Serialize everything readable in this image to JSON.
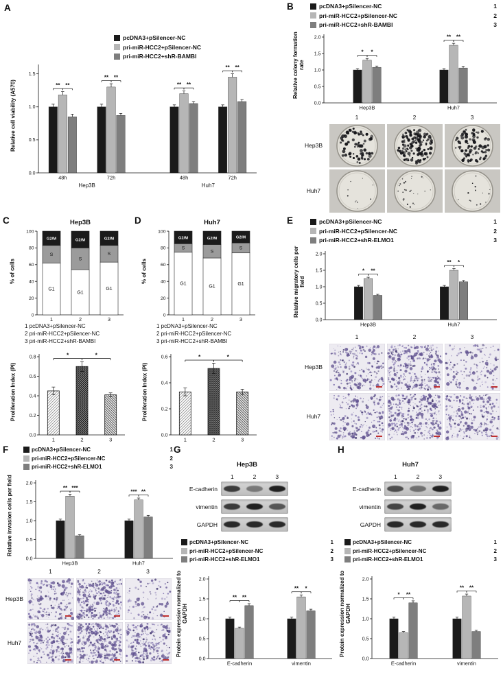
{
  "colors": {
    "series": [
      "#1a1a1a",
      "#b6b6b6",
      "#7e7e7e"
    ],
    "stack": {
      "g1": "#ffffff",
      "s": "#9b9b9b",
      "g2m": "#1b1b1b"
    },
    "colony_dot": "#16161a",
    "transwell_dots": [
      "#7b6cab",
      "#5d4f8e",
      "#9488bb",
      "#473c72"
    ],
    "scale_bar": "#c03030"
  },
  "panelA": {
    "letter": "A",
    "legend": {
      "items": [
        {
          "label": "pcDNA3+pSilencer-NC"
        },
        {
          "label": "pri-miR-HCC2+pSilencer-NC"
        },
        {
          "label": "pri-miR-HCC2+shR-BAMBI"
        }
      ]
    },
    "chart": {
      "type": "grouped",
      "ylabel": "Relative cell viability (A570)",
      "ymax": 1.6,
      "yticks": [
        "0.0",
        "0.5",
        "1.0",
        "1.5"
      ],
      "groups": [
        {
          "label": "48h",
          "values": [
            1.0,
            1.18,
            0.85
          ],
          "errs": [
            0.04,
            0.05,
            0.04
          ],
          "sig": [
            "**",
            "**"
          ]
        },
        {
          "label": "72h",
          "values": [
            1.0,
            1.3,
            0.87
          ],
          "errs": [
            0.04,
            0.05,
            0.03
          ],
          "sig": [
            "**",
            "**"
          ]
        },
        {
          "label": "48h",
          "values": [
            1.0,
            1.2,
            1.05
          ],
          "errs": [
            0.03,
            0.04,
            0.03
          ],
          "sig": [
            "**",
            "**"
          ]
        },
        {
          "label": "72h",
          "values": [
            1.0,
            1.45,
            1.08
          ],
          "errs": [
            0.03,
            0.05,
            0.03
          ],
          "sig": [
            "**",
            "**"
          ]
        }
      ],
      "clusters": [
        {
          "label": "Hep3B",
          "groups": [
            0,
            1
          ]
        },
        {
          "label": "Huh7",
          "groups": [
            2,
            3
          ]
        }
      ]
    }
  },
  "panelB": {
    "letter": "B",
    "legend": {
      "items": [
        {
          "label": "pcDNA3+pSilencer-NC",
          "num": "1"
        },
        {
          "label": "pri-miR-HCC2+pSilencer-NC",
          "num": "2"
        },
        {
          "label": "pri-miR-HCC2+shR-BAMBI",
          "num": "3"
        }
      ]
    },
    "chart": {
      "type": "grouped",
      "ylabel": "Relative colony formation rate",
      "ymax": 2.0,
      "yticks": [
        "0.0",
        "0.5",
        "1.0",
        "1.5",
        "2.0"
      ],
      "groups": [
        {
          "label": "Hep3B",
          "values": [
            1.0,
            1.3,
            1.08
          ],
          "errs": [
            0.04,
            0.05,
            0.04
          ],
          "sig": [
            "*",
            "*"
          ]
        },
        {
          "label": "Huh7",
          "values": [
            1.0,
            1.75,
            1.06
          ],
          "errs": [
            0.04,
            0.06,
            0.05
          ],
          "sig": [
            "**",
            "**"
          ]
        }
      ]
    },
    "images": {
      "kind": "colony",
      "col_labels": [
        "1",
        "2",
        "3"
      ],
      "rows": [
        {
          "label": "Hep3B",
          "counts": [
            70,
            140,
            85
          ],
          "dot": [
            1.1,
            2.6
          ]
        },
        {
          "label": "Huh7",
          "counts": [
            10,
            26,
            14
          ],
          "dot": [
            0.5,
            1.2
          ]
        }
      ]
    }
  },
  "panelC": {
    "letter": "C",
    "title": "Hep3B",
    "stacked": {
      "type": "stacked",
      "ylabel": "% of cells",
      "ymax": 100,
      "yticks": [
        "0",
        "20",
        "40",
        "60",
        "80",
        "100"
      ],
      "bars": [
        {
          "label": "1",
          "g1": 62,
          "s": 21,
          "g2m": 17
        },
        {
          "label": "2",
          "g1": 54,
          "s": 26,
          "g2m": 20
        },
        {
          "label": "3",
          "g1": 63,
          "s": 20,
          "g2m": 17
        }
      ],
      "segment_labels": {
        "g1": "G1",
        "s": "S",
        "g2m": "G2/M"
      }
    },
    "text_legend": [
      "1 pcDNA3+pSilencer-NC",
      "2 pri-miR-HCC2+pSilencer-NC",
      "3 pri-miR-HCC2+shR-BAMBI"
    ],
    "pi_chart": {
      "type": "pattern",
      "ylabel": "Proliferation Index (PI)",
      "ymax": 0.8,
      "yticks": [
        "0.0",
        "0.2",
        "0.4",
        "0.6",
        "0.8"
      ],
      "bars": [
        {
          "label": "1",
          "value": 0.45,
          "err": 0.04
        },
        {
          "label": "2",
          "value": 0.7,
          "err": 0.05
        },
        {
          "label": "3",
          "value": 0.41,
          "err": 0.02
        }
      ],
      "sig": [
        "*",
        "*"
      ]
    }
  },
  "panelD": {
    "letter": "D",
    "title": "Huh7",
    "stacked": {
      "type": "stacked",
      "ylabel": "% of cells",
      "ymax": 100,
      "yticks": [
        "0",
        "20",
        "40",
        "60",
        "80",
        "100"
      ],
      "bars": [
        {
          "label": "1",
          "g1": 75,
          "s": 10,
          "g2m": 15
        },
        {
          "label": "2",
          "g1": 68,
          "s": 16,
          "g2m": 16
        },
        {
          "label": "3",
          "g1": 74,
          "s": 12,
          "g2m": 14
        }
      ],
      "segment_labels": {
        "g1": "G1",
        "s": "S",
        "g2m": "G2/M"
      }
    },
    "text_legend": [
      "1 pcDNA3+pSilencer-NC",
      "2 pri-miR-HCC2+pSilencer-NC",
      "3 pri-miR-HCC2+shR-BAMBI"
    ],
    "pi_chart": {
      "type": "pattern",
      "ylabel": "Proliferation Index (PI)",
      "ymax": 0.6,
      "yticks": [
        "0.0",
        "0.2",
        "0.4",
        "0.6"
      ],
      "bars": [
        {
          "label": "1",
          "value": 0.33,
          "err": 0.03
        },
        {
          "label": "2",
          "value": 0.51,
          "err": 0.04
        },
        {
          "label": "3",
          "value": 0.33,
          "err": 0.02
        }
      ],
      "sig": [
        "*",
        "*"
      ]
    }
  },
  "panelE": {
    "letter": "E",
    "legend": {
      "items": [
        {
          "label": "pcDNA3+pSilencer-NC",
          "num": "1"
        },
        {
          "label": "pri-miR-HCC2+pSilencer-NC",
          "num": "2"
        },
        {
          "label": "pri-miR-HCC2+shR-ELMO1",
          "num": "3"
        }
      ]
    },
    "chart": {
      "type": "grouped",
      "ylabel": "Relative migratory cells per field",
      "ymax": 2.0,
      "yticks": [
        "0.0",
        "0.5",
        "1.0",
        "1.5",
        "2.0"
      ],
      "groups": [
        {
          "label": "Hep3B",
          "values": [
            1.0,
            1.25,
            0.74
          ],
          "errs": [
            0.04,
            0.04,
            0.03
          ],
          "sig": [
            "*",
            "**"
          ]
        },
        {
          "label": "Huh7",
          "values": [
            1.0,
            1.5,
            1.15
          ],
          "errs": [
            0.04,
            0.05,
            0.04
          ],
          "sig": [
            "**",
            "*"
          ]
        }
      ]
    },
    "images": {
      "kind": "transwell",
      "col_labels": [
        "1",
        "2",
        "3"
      ],
      "rows": [
        {
          "label": "Hep3B",
          "counts": [
            220,
            310,
            140
          ]
        },
        {
          "label": "Huh7",
          "counts": [
            200,
            330,
            240
          ]
        }
      ]
    }
  },
  "panelF": {
    "letter": "F",
    "legend": {
      "items": [
        {
          "label": "pcDNA3+pSilencer-NC",
          "num": "1"
        },
        {
          "label": "pri-miR-HCC2+pSilencer-NC",
          "num": "2"
        },
        {
          "label": "pri-miR-HCC2+shR-ELMO1",
          "num": "3"
        }
      ]
    },
    "chart": {
      "type": "grouped",
      "ylabel": "Relative invasion cells per field",
      "ymax": 2.0,
      "yticks": [
        "0.0",
        "0.5",
        "1.0",
        "1.5",
        "2.0"
      ],
      "groups": [
        {
          "label": "Hep3B",
          "values": [
            1.0,
            1.65,
            0.6
          ],
          "errs": [
            0.04,
            0.05,
            0.03
          ],
          "sig": [
            "**",
            "***"
          ]
        },
        {
          "label": "Huh7",
          "values": [
            1.0,
            1.55,
            1.1
          ],
          "errs": [
            0.04,
            0.05,
            0.04
          ],
          "sig": [
            "***",
            "**"
          ]
        }
      ]
    },
    "images": {
      "kind": "transwell",
      "col_labels": [
        "1",
        "2",
        "3"
      ],
      "rows": [
        {
          "label": "Hep3B",
          "counts": [
            170,
            300,
            80
          ]
        },
        {
          "label": "Huh7",
          "counts": [
            220,
            330,
            230
          ]
        }
      ]
    }
  },
  "panelG": {
    "letter": "G",
    "title": "Hep3B",
    "blot": {
      "lanes": [
        "1",
        "2",
        "3"
      ],
      "rows": [
        {
          "label": "E-cadherin",
          "bands": [
            0.8,
            0.45,
            0.95
          ]
        },
        {
          "label": "vimentin",
          "bands": [
            0.8,
            0.95,
            0.65
          ]
        },
        {
          "label": "GAPDH",
          "bands": [
            0.9,
            0.9,
            0.9
          ]
        }
      ]
    },
    "legend": {
      "items": [
        {
          "label": "pcDNA3+pSilencer-NC",
          "num": "1"
        },
        {
          "label": "pri-miR-HCC2+pSilencer-NC",
          "num": "2"
        },
        {
          "label": "pri-miR-HCC2+shR-ELMO1",
          "num": "3"
        }
      ]
    },
    "chart": {
      "type": "grouped",
      "ylabel": "Protein expression normalized to GAPDH",
      "ymax": 2.0,
      "yticks": [
        "0.0",
        "0.5",
        "1.0",
        "1.5",
        "2.0"
      ],
      "groups": [
        {
          "label": "E-cadherin",
          "values": [
            1.0,
            0.76,
            1.33
          ],
          "errs": [
            0.04,
            0.03,
            0.05
          ],
          "sig": [
            "**",
            "**"
          ]
        },
        {
          "label": "vimentin",
          "values": [
            1.0,
            1.55,
            1.2
          ],
          "errs": [
            0.04,
            0.05,
            0.04
          ],
          "sig": [
            "**",
            "*"
          ]
        }
      ]
    }
  },
  "panelH": {
    "letter": "H",
    "title": "Huh7",
    "blot": {
      "lanes": [
        "1",
        "2",
        "3"
      ],
      "rows": [
        {
          "label": "E-cadherin",
          "bands": [
            0.7,
            0.5,
            0.95
          ]
        },
        {
          "label": "vimentin",
          "bands": [
            0.75,
            0.95,
            0.55
          ]
        },
        {
          "label": "GAPDH",
          "bands": [
            0.9,
            0.9,
            0.9
          ]
        }
      ]
    },
    "legend": {
      "items": [
        {
          "label": "pcDNA3+pSilencer-NC",
          "num": "1"
        },
        {
          "label": "pri-miR-HCC2+pSilencer-NC",
          "num": "2"
        },
        {
          "label": "pri-miR-HCC2+shR-ELMO1",
          "num": "3"
        }
      ]
    },
    "chart": {
      "type": "grouped",
      "ylabel": "Protein expression normalized to GAPDH",
      "ymax": 2.0,
      "yticks": [
        "0.0",
        "0.5",
        "1.0",
        "1.5",
        "2.0"
      ],
      "groups": [
        {
          "label": "E-cadherin",
          "values": [
            1.0,
            0.65,
            1.4
          ],
          "errs": [
            0.04,
            0.03,
            0.05
          ],
          "sig": [
            "*",
            "**"
          ]
        },
        {
          "label": "vimentin",
          "values": [
            1.0,
            1.57,
            0.68
          ],
          "errs": [
            0.04,
            0.05,
            0.03
          ],
          "sig": [
            "**",
            "**"
          ]
        }
      ]
    }
  }
}
